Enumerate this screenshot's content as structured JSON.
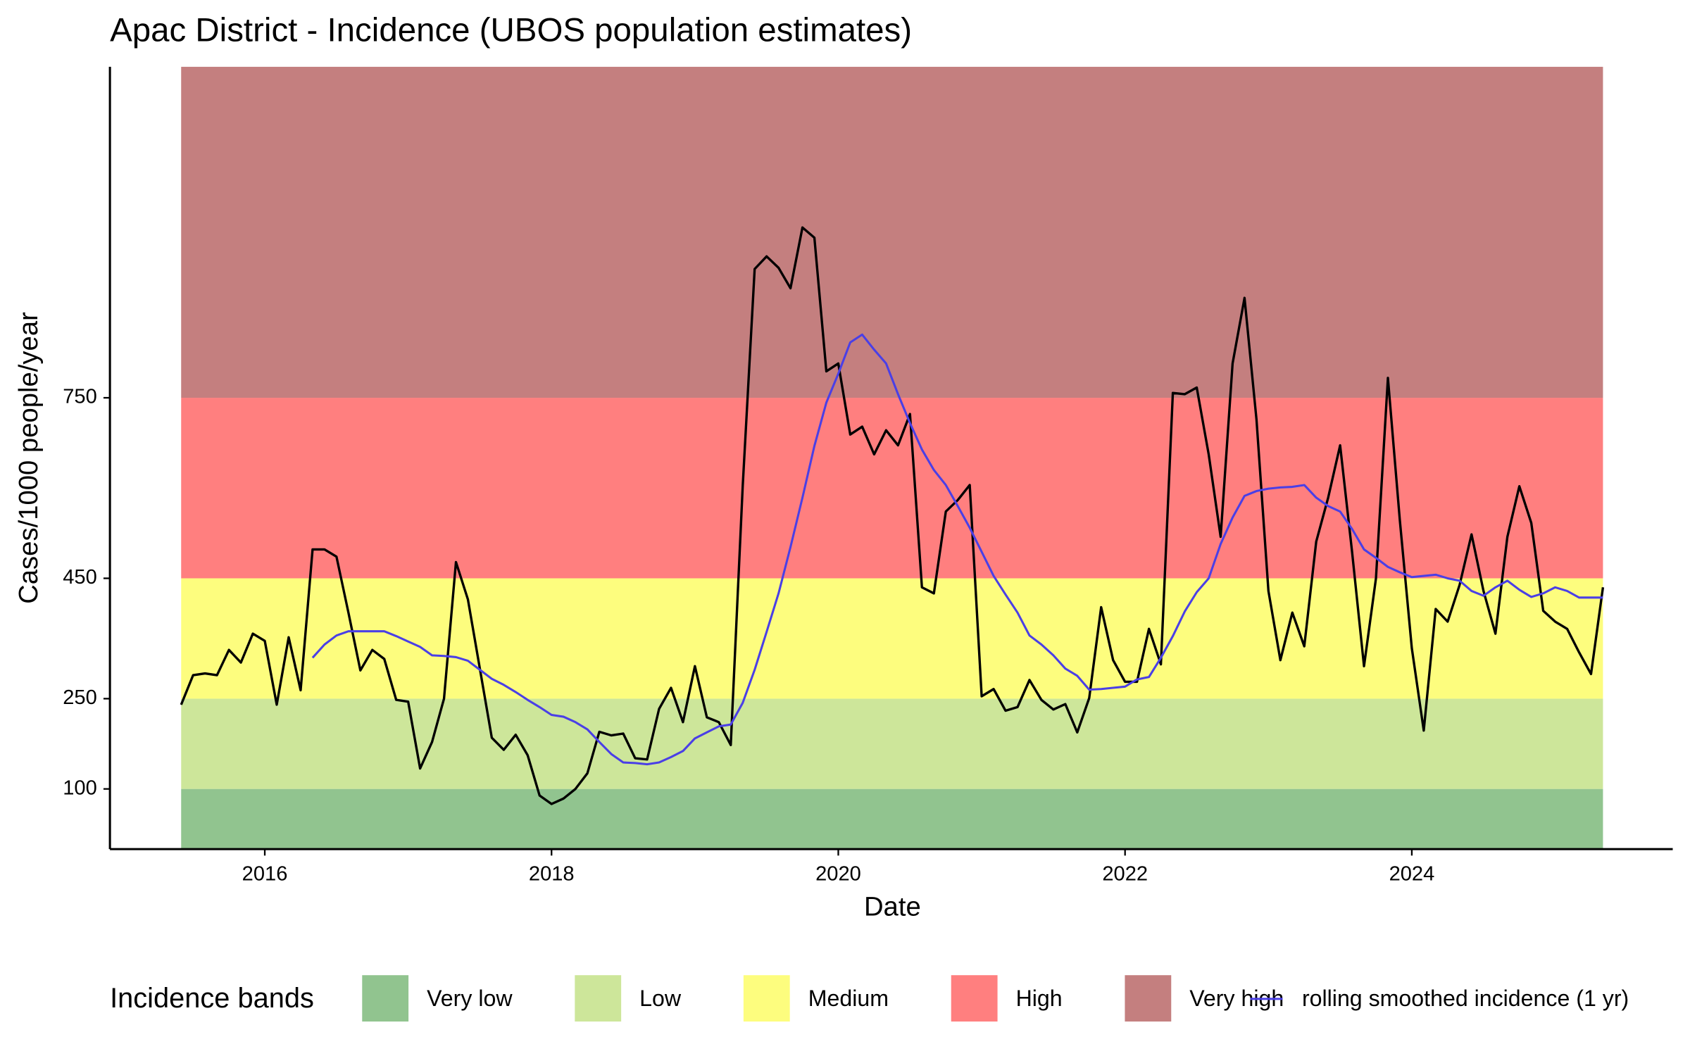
{
  "chart_data": {
    "type": "line",
    "title": "Apac District - Incidence (UBOS population estimates)",
    "x_label": "Date",
    "y_label": "Cases/1000 people/year",
    "xlim": [
      2014.92,
      2025.82
    ],
    "xticks": [
      2016,
      2018,
      2020,
      2022,
      2024
    ],
    "ylim": [
      0,
      1300
    ],
    "yticks": [
      100,
      250,
      450,
      750
    ],
    "legend_title": "Incidence bands",
    "legend_position": "bottom",
    "bands": [
      {
        "name": "Very low",
        "color": "#91c48f",
        "range": [
          0,
          100
        ]
      },
      {
        "name": "Low",
        "color": "#cde69a",
        "range": [
          100,
          250
        ]
      },
      {
        "name": "Medium",
        "color": "#fdfd7e",
        "range": [
          250,
          450
        ]
      },
      {
        "name": "High",
        "color": "#ff7f7f",
        "range": [
          450,
          750
        ]
      },
      {
        "name": "Very high",
        "color": "#c47f7f",
        "range": [
          750,
          1300
        ]
      }
    ],
    "x": [
      "2015-06",
      "2015-07",
      "2015-08",
      "2015-09",
      "2015-10",
      "2015-11",
      "2015-12",
      "2016-01",
      "2016-02",
      "2016-03",
      "2016-04",
      "2016-05",
      "2016-06",
      "2016-07",
      "2016-08",
      "2016-09",
      "2016-10",
      "2016-11",
      "2016-12",
      "2017-01",
      "2017-02",
      "2017-03",
      "2017-04",
      "2017-05",
      "2017-06",
      "2017-07",
      "2017-08",
      "2017-09",
      "2017-10",
      "2017-11",
      "2017-12",
      "2018-01",
      "2018-02",
      "2018-03",
      "2018-04",
      "2018-05",
      "2018-06",
      "2018-07",
      "2018-08",
      "2018-09",
      "2018-10",
      "2018-11",
      "2018-12",
      "2019-01",
      "2019-02",
      "2019-03",
      "2019-04",
      "2019-05",
      "2019-06",
      "2019-07",
      "2019-08",
      "2019-09",
      "2019-10",
      "2019-11",
      "2019-12",
      "2020-01",
      "2020-02",
      "2020-03",
      "2020-04",
      "2020-05",
      "2020-06",
      "2020-07",
      "2020-08",
      "2020-09",
      "2020-10",
      "2020-11",
      "2020-12",
      "2021-01",
      "2021-02",
      "2021-03",
      "2021-04",
      "2021-05",
      "2021-06",
      "2021-07",
      "2021-08",
      "2021-09",
      "2021-10",
      "2021-11",
      "2021-12",
      "2022-01",
      "2022-02",
      "2022-03",
      "2022-04",
      "2022-05",
      "2022-06",
      "2022-07",
      "2022-08",
      "2022-09",
      "2022-10",
      "2022-11",
      "2022-12",
      "2023-01",
      "2023-02",
      "2023-03",
      "2023-04",
      "2023-05",
      "2023-06",
      "2023-07",
      "2023-08",
      "2023-09",
      "2023-10",
      "2023-11",
      "2023-12",
      "2024-01",
      "2024-02",
      "2024-03",
      "2024-04",
      "2024-05",
      "2024-06",
      "2024-07",
      "2024-08",
      "2024-09",
      "2024-10",
      "2024-11",
      "2024-12",
      "2025-01",
      "2025-02",
      "2025-03",
      "2025-04",
      "2025-05"
    ],
    "series": [
      {
        "color": "#000000",
        "values": [
          240,
          289,
          292,
          289,
          331,
          310,
          358,
          346,
          240,
          352,
          264,
          498,
          498,
          486,
          393,
          297,
          331,
          316,
          248,
          245,
          134,
          178,
          250,
          477,
          415,
          300,
          185,
          165,
          190,
          156,
          89,
          75,
          84,
          100,
          126,
          195,
          189,
          192,
          151,
          149,
          233,
          268,
          211,
          304,
          219,
          211,
          173,
          603,
          964,
          985,
          966,
          932,
          1033,
          1016,
          794,
          807,
          689,
          702,
          656,
          696,
          671,
          723,
          435,
          425,
          561,
          580,
          605,
          254,
          266,
          230,
          236,
          281,
          248,
          232,
          241,
          194,
          251,
          402,
          314,
          278,
          278,
          366,
          307,
          758,
          756,
          767,
          656,
          519,
          807,
          916,
          714,
          429,
          314,
          393,
          337,
          511,
          584,
          671,
          494,
          304,
          450,
          783,
          546,
          334,
          197,
          399,
          378,
          439,
          523,
          429,
          358,
          519,
          603,
          542,
          396,
          378,
          366,
          327,
          291,
          435
        ]
      },
      {
        "name": "rolling smoothed incidence (1 yr)",
        "color": "#4a3fe6",
        "values": [
          null,
          null,
          null,
          null,
          null,
          null,
          null,
          null,
          null,
          null,
          null,
          318,
          340,
          355,
          362,
          362,
          362,
          362,
          354,
          345,
          336,
          322,
          321,
          319,
          313,
          298,
          283,
          273,
          261,
          248,
          236,
          223,
          220,
          211,
          199,
          178,
          158,
          144,
          143,
          141,
          144,
          153,
          163,
          184,
          194,
          204,
          207,
          243,
          298,
          361,
          425,
          502,
          584,
          670,
          742,
          790,
          842,
          855,
          830,
          807,
          756,
          708,
          664,
          630,
          605,
          570,
          534,
          494,
          454,
          423,
          393,
          355,
          340,
          322,
          300,
          288,
          265,
          266,
          268,
          270,
          282,
          286,
          318,
          354,
          395,
          427,
          450,
          507,
          551,
          587,
          595,
          599,
          601,
          602,
          605,
          584,
          570,
          561,
          532,
          498,
          484,
          469,
          460,
          452,
          454,
          456,
          450,
          446,
          429,
          421,
          435,
          446,
          431,
          419,
          425,
          435,
          429,
          418,
          418,
          418
        ]
      }
    ]
  }
}
